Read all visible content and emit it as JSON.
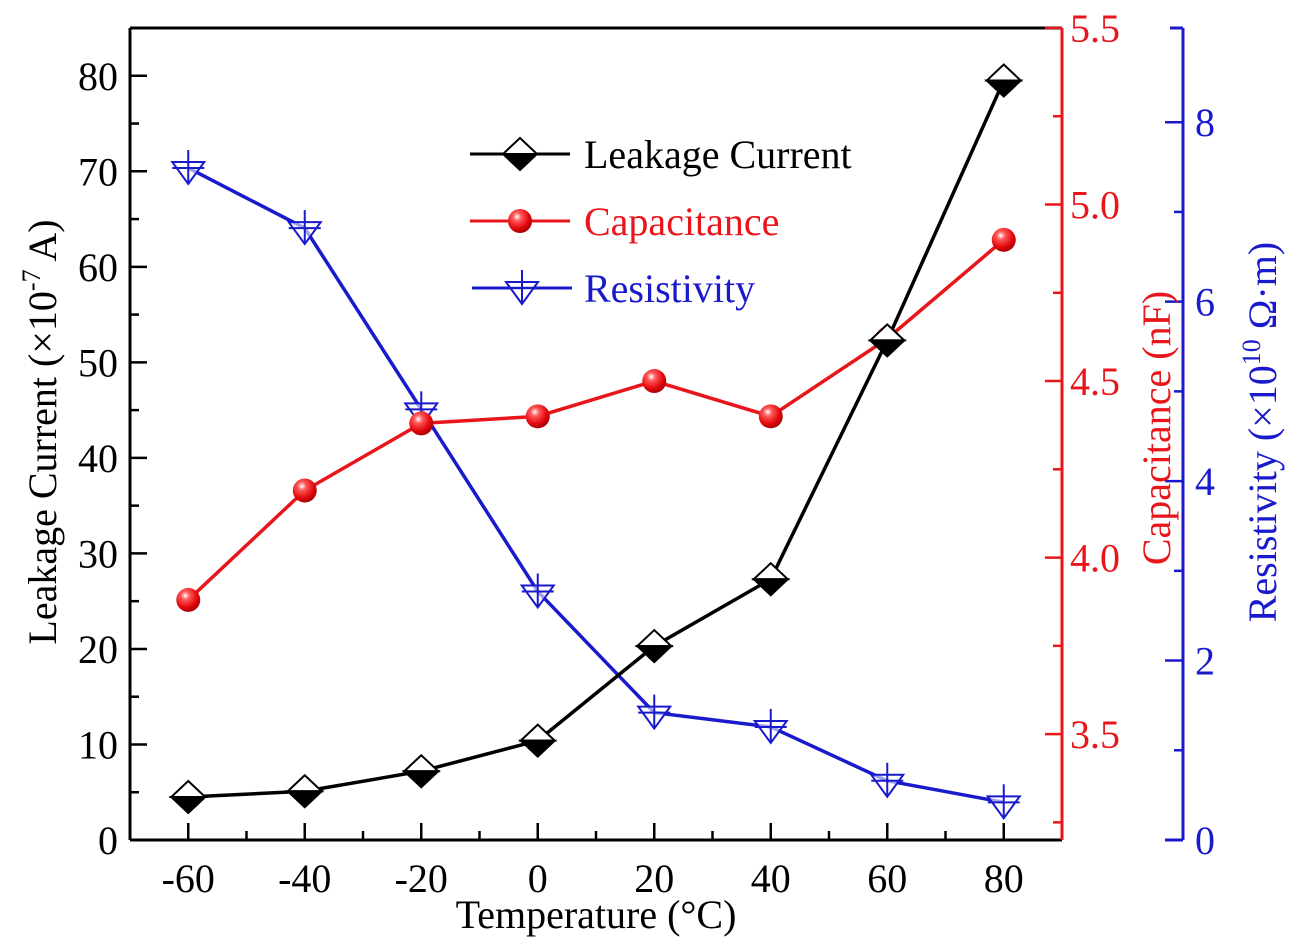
{
  "chart_data": {
    "type": "line",
    "title": "",
    "xlabel": "Temperature (°C)",
    "x": [
      -60,
      -40,
      -20,
      0,
      20,
      40,
      60,
      80
    ],
    "xlim": [
      -70,
      90
    ],
    "xticks": [
      -60,
      -40,
      -20,
      0,
      20,
      40,
      60,
      80
    ],
    "xtick_labels": [
      "-60",
      "-40",
      "-20",
      "0",
      "20",
      "40",
      "60",
      "80"
    ],
    "grid": false,
    "legend_position": "top-center",
    "axes": {
      "left": {
        "label_main": "Leakage Current (×10",
        "label_sup": "-7",
        "label_end": " A)",
        "ylim": [
          0,
          85
        ],
        "ticks": [
          0,
          10,
          20,
          30,
          40,
          50,
          60,
          70,
          80
        ],
        "tick_labels": [
          "0",
          "10",
          "20",
          "30",
          "40",
          "50",
          "60",
          "70",
          "80"
        ],
        "color": "#000000"
      },
      "right1": {
        "label": "Capacitance (nF)",
        "ylim": [
          3.2,
          5.5
        ],
        "ticks": [
          3.5,
          4.0,
          4.5,
          5.0,
          5.5
        ],
        "tick_labels": [
          "3.5",
          "4.0",
          "4.5",
          "5.0",
          "5.5"
        ],
        "color": "#e8161b"
      },
      "right2": {
        "label_main": "Resistivity (×10",
        "label_sup": "10",
        "label_end": " Ω·m)",
        "ylim": [
          0,
          9.05
        ],
        "ticks": [
          0,
          2,
          4,
          6,
          8
        ],
        "tick_labels": [
          "0",
          "2",
          "4",
          "6",
          "8"
        ],
        "color": "#1a1acd"
      }
    },
    "series": [
      {
        "name": "Leakage Current",
        "axis": "left",
        "marker": "half-filled-diamond",
        "color": "#000000",
        "values": [
          4.5,
          5.1,
          7.2,
          10.4,
          20.3,
          27.3,
          52.3,
          79.5
        ]
      },
      {
        "name": "Capacitance",
        "axis": "right1",
        "marker": "red-sphere",
        "color": "#e8161b",
        "values": [
          3.88,
          4.19,
          4.38,
          4.4,
          4.5,
          4.4,
          4.62,
          4.9
        ]
      },
      {
        "name": "Resistivity",
        "axis": "right2",
        "marker": "crossed-down-triangle",
        "color": "#1a1acd",
        "values": [
          7.49,
          6.82,
          4.8,
          2.77,
          1.42,
          1.26,
          0.66,
          0.42
        ]
      }
    ]
  }
}
